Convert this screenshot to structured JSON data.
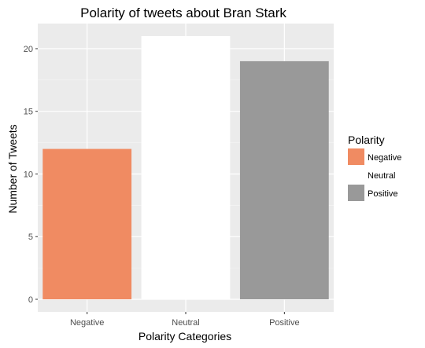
{
  "chart_data": {
    "type": "bar",
    "title": "Polarity of tweets about Bran Stark",
    "xlabel": "Polarity Categories",
    "ylabel": "Number of Tweets",
    "categories": [
      "Negative",
      "Neutral",
      "Positive"
    ],
    "values": [
      12,
      21,
      19
    ],
    "colors": [
      "#f08b62",
      "#ffffff",
      "#999999"
    ],
    "ylim": [
      0,
      21
    ],
    "yticks": [
      0,
      5,
      10,
      15,
      20
    ],
    "grid": true,
    "panel_background": "#ebebeb",
    "legend": {
      "title": "Polarity",
      "placement": "right",
      "entries": [
        "Negative",
        "Neutral",
        "Positive"
      ]
    }
  }
}
